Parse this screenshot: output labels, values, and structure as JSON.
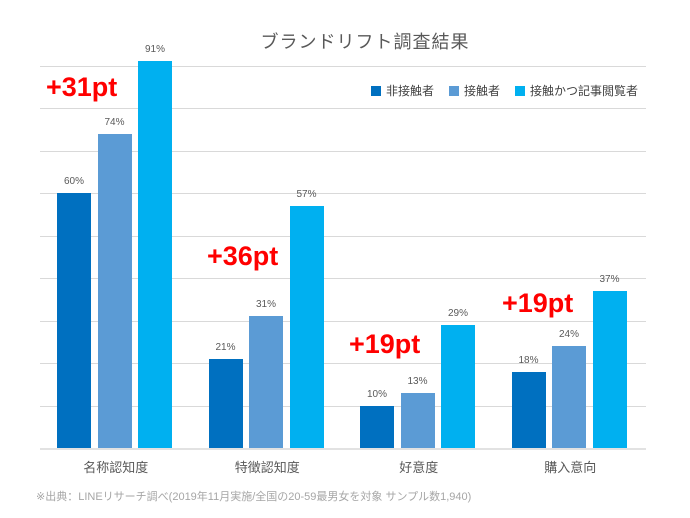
{
  "title": "ブランドリフト調査結果",
  "chart_data": {
    "type": "bar",
    "title": "ブランドリフト調査結果",
    "categories": [
      "名称認知度",
      "特徴認知度",
      "好意度",
      "購入意向"
    ],
    "series": [
      {
        "name": "非接触者",
        "color": "#0070C0",
        "values": [
          60,
          21,
          10,
          18
        ]
      },
      {
        "name": "接触者",
        "color": "#5B9BD5",
        "values": [
          74,
          31,
          13,
          24
        ]
      },
      {
        "name": "接触かつ記事閲覧者",
        "color": "#00B0F0",
        "values": [
          91,
          57,
          29,
          37
        ]
      }
    ],
    "value_label_suffix": "%",
    "annotations": [
      {
        "text": "+31pt",
        "category": "名称認知度"
      },
      {
        "text": "+36pt",
        "category": "特徴認知度"
      },
      {
        "text": "+19pt",
        "category": "好意度"
      },
      {
        "text": "+19pt",
        "category": "購入意向"
      }
    ],
    "ylim": [
      0,
      100
    ],
    "grid": "horizontal gridlines every 10%, no y-axis tick labels",
    "legend_position": "top-right"
  },
  "legend": {
    "items": [
      {
        "label": "非接触者",
        "color": "#0070C0"
      },
      {
        "label": "接触者",
        "color": "#5B9BD5"
      },
      {
        "label": "接触かつ記事閲覧者",
        "color": "#00B0F0"
      }
    ]
  },
  "footnote": "※出典：LINEリサーチ調べ(2019年11月実施/全国の20-59最男女を対象 サンプル数1,940)",
  "colors": {
    "annotation_red": "#FF0000",
    "gridline": "#D9D9D9",
    "axis_text": "#595959",
    "footnote_gray": "#A6A6A6",
    "background": "#FFFFFF"
  }
}
